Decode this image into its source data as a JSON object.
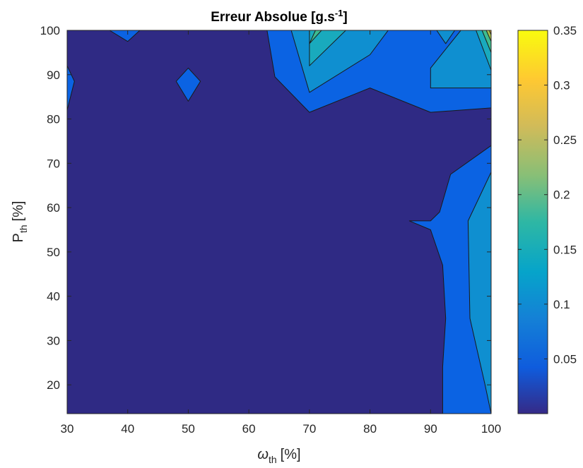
{
  "chart_data": {
    "type": "contour",
    "title": "Erreur Absolue [g.s",
    "title_sup": "-1",
    "title_end": "]",
    "xlabel": {
      "main": "ω",
      "sub": "th",
      "unit": "[%]"
    },
    "ylabel": {
      "main": "P",
      "sub": "th",
      "unit": "[%]"
    },
    "xlim": [
      30,
      100
    ],
    "ylim": [
      13.5,
      100
    ],
    "xticks": [
      "30",
      "40",
      "50",
      "60",
      "70",
      "80",
      "90",
      "100"
    ],
    "xtick_values": [
      30,
      40,
      50,
      60,
      70,
      80,
      90,
      100
    ],
    "yticks": [
      "20",
      "30",
      "40",
      "50",
      "60",
      "70",
      "80",
      "90",
      "100"
    ],
    "ytick_values": [
      20,
      30,
      40,
      50,
      60,
      70,
      80,
      90,
      100
    ],
    "colorbar": {
      "min": 0.0,
      "max": 0.35,
      "ticks": [
        "0.05",
        "0.1",
        "0.15",
        "0.2",
        "0.25",
        "0.3",
        "0.35"
      ],
      "tick_values": [
        0.05,
        0.1,
        0.15,
        0.2,
        0.25,
        0.3,
        0.35
      ]
    },
    "colormap": "parula",
    "levels": [
      {
        "name": "base",
        "value": 0.0,
        "color": "#2f2a84"
      },
      {
        "name": "level-1",
        "value": 0.05,
        "color": "#0b63e3"
      },
      {
        "name": "level-2",
        "value": 0.1,
        "color": "#0f8fd0"
      },
      {
        "name": "level-3",
        "value": 0.15,
        "color": "#19aabd"
      },
      {
        "name": "level-4",
        "value": 0.2,
        "color": "#3ebc8f"
      },
      {
        "name": "level-5",
        "value": 0.25,
        "color": "#a6be4c"
      },
      {
        "name": "level-6",
        "value": 0.3,
        "color": "#f4ba3a"
      }
    ],
    "regions": [
      {
        "level": 1,
        "points": [
          [
            30,
            92
          ],
          [
            31.2,
            88.5
          ],
          [
            30,
            82
          ]
        ]
      },
      {
        "level": 1,
        "points": [
          [
            37,
            100
          ],
          [
            40,
            97.5
          ],
          [
            42,
            100
          ]
        ]
      },
      {
        "level": 1,
        "points": [
          [
            48,
            88.5
          ],
          [
            50,
            91.5
          ],
          [
            52,
            88.5
          ],
          [
            50,
            84
          ]
        ]
      },
      {
        "level": 1,
        "points": [
          [
            63,
            100
          ],
          [
            64.3,
            89.5
          ],
          [
            70,
            81.5
          ],
          [
            80,
            87
          ],
          [
            90,
            81.5
          ],
          [
            100,
            82.5
          ],
          [
            100,
            100
          ]
        ]
      },
      {
        "level": 1,
        "points": [
          [
            100,
            74
          ],
          [
            93.3,
            67.5
          ],
          [
            91.5,
            59
          ],
          [
            90,
            57
          ],
          [
            86.5,
            57
          ],
          [
            90,
            55
          ],
          [
            92,
            47
          ],
          [
            92.5,
            35
          ],
          [
            92,
            24
          ],
          [
            92,
            13.5
          ],
          [
            100,
            13.5
          ]
        ]
      },
      {
        "level": 2,
        "points": [
          [
            67,
            100
          ],
          [
            70,
            86
          ],
          [
            80,
            94.5
          ],
          [
            83,
            100
          ]
        ]
      },
      {
        "level": 2,
        "points": [
          [
            91,
            100
          ],
          [
            92.5,
            97
          ],
          [
            94,
            100
          ]
        ]
      },
      {
        "level": 2,
        "points": [
          [
            95,
            100
          ],
          [
            90,
            91.5
          ],
          [
            90,
            87
          ],
          [
            100,
            87
          ],
          [
            100,
            100
          ]
        ]
      },
      {
        "level": 2,
        "points": [
          [
            100,
            68
          ],
          [
            96.2,
            57
          ],
          [
            96.5,
            35
          ],
          [
            99,
            20
          ],
          [
            100,
            13.5
          ]
        ]
      },
      {
        "level": 3,
        "points": [
          [
            70,
            100
          ],
          [
            70,
            92
          ],
          [
            76,
            100
          ]
        ]
      },
      {
        "level": 3,
        "points": [
          [
            97.5,
            100
          ],
          [
            100,
            91
          ],
          [
            100,
            100
          ]
        ]
      },
      {
        "level": 4,
        "points": [
          [
            71,
            100
          ],
          [
            70,
            97
          ],
          [
            72,
            100
          ]
        ]
      },
      {
        "level": 4,
        "points": [
          [
            98.5,
            100
          ],
          [
            100,
            95
          ],
          [
            100,
            100
          ]
        ]
      },
      {
        "level": 5,
        "points": [
          [
            99.2,
            100
          ],
          [
            100,
            97.5
          ],
          [
            100,
            100
          ]
        ]
      },
      {
        "level": 6,
        "points": [
          [
            99.7,
            100
          ],
          [
            100,
            99
          ],
          [
            100,
            100
          ]
        ]
      }
    ],
    "grid": false
  }
}
